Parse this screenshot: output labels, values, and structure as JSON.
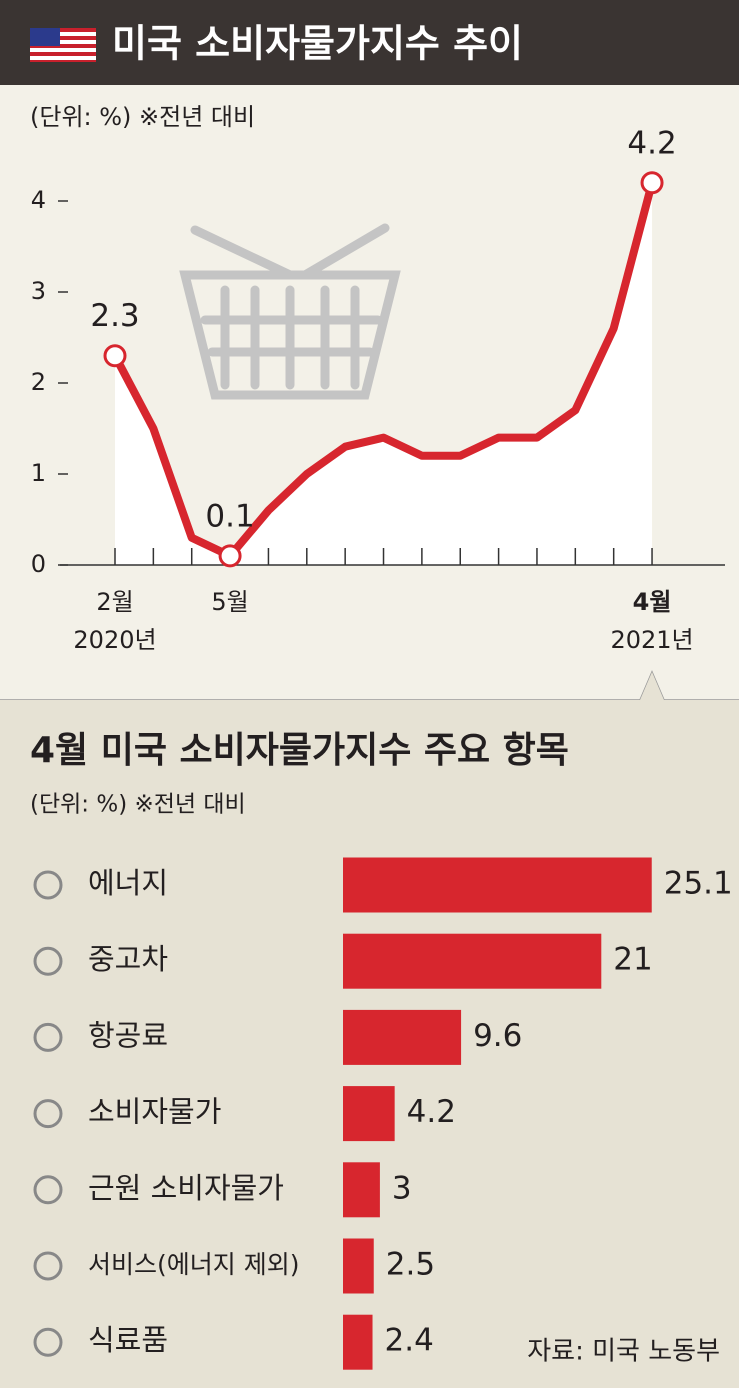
{
  "chart_data": [
    {
      "type": "line",
      "title": "미국 소비자물가지수 추이",
      "subtitle": "(단위: %) ※전년 대비",
      "categories": [
        "2월",
        null,
        null,
        "5월",
        null,
        null,
        null,
        null,
        null,
        null,
        null,
        null,
        null,
        null,
        "4월"
      ],
      "category_years": [
        "2020년",
        null,
        null,
        null,
        null,
        null,
        null,
        null,
        null,
        null,
        null,
        null,
        null,
        null,
        "2021년"
      ],
      "values": [
        2.3,
        1.5,
        0.3,
        0.1,
        0.6,
        1.0,
        1.3,
        1.4,
        1.2,
        1.2,
        1.4,
        1.4,
        1.7,
        2.6,
        4.2
      ],
      "value_labels": [
        "2.3",
        null,
        null,
        "0.1",
        null,
        null,
        null,
        null,
        null,
        null,
        null,
        null,
        null,
        null,
        "4.2"
      ],
      "color": "#d7262e",
      "ylim": [
        0,
        4
      ],
      "yticks": [
        0,
        1,
        2,
        3,
        4
      ]
    },
    {
      "type": "hbar",
      "title": "4월 미국 소비자물가지수 주요 항목",
      "subtitle": "(단위: %) ※전년 대비",
      "categories": [
        "에너지",
        "중고차",
        "항공료",
        "소비자물가",
        "근원 소비자물가",
        "서비스(에너지 제외)",
        "식료품"
      ],
      "values": [
        25.1,
        21,
        9.6,
        4.2,
        3,
        2.5,
        2.4
      ],
      "color": "#d7262e",
      "source": "자료: 미국 노동부"
    }
  ]
}
